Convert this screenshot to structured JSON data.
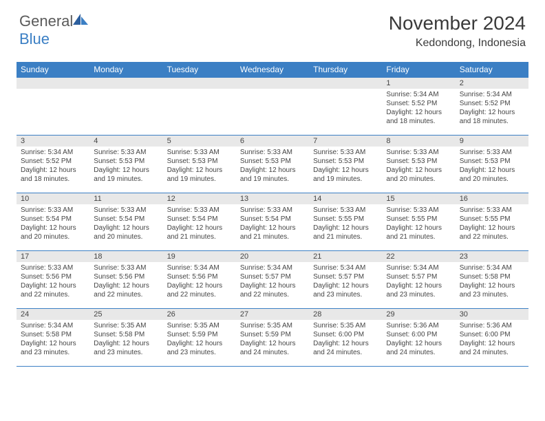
{
  "logo": {
    "text1": "General",
    "text2": "Blue"
  },
  "title": "November 2024",
  "location": "Kedondong, Indonesia",
  "header_bg": "#3b7fc4",
  "day_bg": "#e8e8e8",
  "border_color": "#3b7fc4",
  "weekdays": [
    "Sunday",
    "Monday",
    "Tuesday",
    "Wednesday",
    "Thursday",
    "Friday",
    "Saturday"
  ],
  "weeks": [
    [
      {
        "empty": true
      },
      {
        "empty": true
      },
      {
        "empty": true
      },
      {
        "empty": true
      },
      {
        "empty": true
      },
      {
        "day": "1",
        "sunrise": "Sunrise: 5:34 AM",
        "sunset": "Sunset: 5:52 PM",
        "daylight": "Daylight: 12 hours and 18 minutes."
      },
      {
        "day": "2",
        "sunrise": "Sunrise: 5:34 AM",
        "sunset": "Sunset: 5:52 PM",
        "daylight": "Daylight: 12 hours and 18 minutes."
      }
    ],
    [
      {
        "day": "3",
        "sunrise": "Sunrise: 5:34 AM",
        "sunset": "Sunset: 5:52 PM",
        "daylight": "Daylight: 12 hours and 18 minutes."
      },
      {
        "day": "4",
        "sunrise": "Sunrise: 5:33 AM",
        "sunset": "Sunset: 5:53 PM",
        "daylight": "Daylight: 12 hours and 19 minutes."
      },
      {
        "day": "5",
        "sunrise": "Sunrise: 5:33 AM",
        "sunset": "Sunset: 5:53 PM",
        "daylight": "Daylight: 12 hours and 19 minutes."
      },
      {
        "day": "6",
        "sunrise": "Sunrise: 5:33 AM",
        "sunset": "Sunset: 5:53 PM",
        "daylight": "Daylight: 12 hours and 19 minutes."
      },
      {
        "day": "7",
        "sunrise": "Sunrise: 5:33 AM",
        "sunset": "Sunset: 5:53 PM",
        "daylight": "Daylight: 12 hours and 19 minutes."
      },
      {
        "day": "8",
        "sunrise": "Sunrise: 5:33 AM",
        "sunset": "Sunset: 5:53 PM",
        "daylight": "Daylight: 12 hours and 20 minutes."
      },
      {
        "day": "9",
        "sunrise": "Sunrise: 5:33 AM",
        "sunset": "Sunset: 5:53 PM",
        "daylight": "Daylight: 12 hours and 20 minutes."
      }
    ],
    [
      {
        "day": "10",
        "sunrise": "Sunrise: 5:33 AM",
        "sunset": "Sunset: 5:54 PM",
        "daylight": "Daylight: 12 hours and 20 minutes."
      },
      {
        "day": "11",
        "sunrise": "Sunrise: 5:33 AM",
        "sunset": "Sunset: 5:54 PM",
        "daylight": "Daylight: 12 hours and 20 minutes."
      },
      {
        "day": "12",
        "sunrise": "Sunrise: 5:33 AM",
        "sunset": "Sunset: 5:54 PM",
        "daylight": "Daylight: 12 hours and 21 minutes."
      },
      {
        "day": "13",
        "sunrise": "Sunrise: 5:33 AM",
        "sunset": "Sunset: 5:54 PM",
        "daylight": "Daylight: 12 hours and 21 minutes."
      },
      {
        "day": "14",
        "sunrise": "Sunrise: 5:33 AM",
        "sunset": "Sunset: 5:55 PM",
        "daylight": "Daylight: 12 hours and 21 minutes."
      },
      {
        "day": "15",
        "sunrise": "Sunrise: 5:33 AM",
        "sunset": "Sunset: 5:55 PM",
        "daylight": "Daylight: 12 hours and 21 minutes."
      },
      {
        "day": "16",
        "sunrise": "Sunrise: 5:33 AM",
        "sunset": "Sunset: 5:55 PM",
        "daylight": "Daylight: 12 hours and 22 minutes."
      }
    ],
    [
      {
        "day": "17",
        "sunrise": "Sunrise: 5:33 AM",
        "sunset": "Sunset: 5:56 PM",
        "daylight": "Daylight: 12 hours and 22 minutes."
      },
      {
        "day": "18",
        "sunrise": "Sunrise: 5:33 AM",
        "sunset": "Sunset: 5:56 PM",
        "daylight": "Daylight: 12 hours and 22 minutes."
      },
      {
        "day": "19",
        "sunrise": "Sunrise: 5:34 AM",
        "sunset": "Sunset: 5:56 PM",
        "daylight": "Daylight: 12 hours and 22 minutes."
      },
      {
        "day": "20",
        "sunrise": "Sunrise: 5:34 AM",
        "sunset": "Sunset: 5:57 PM",
        "daylight": "Daylight: 12 hours and 22 minutes."
      },
      {
        "day": "21",
        "sunrise": "Sunrise: 5:34 AM",
        "sunset": "Sunset: 5:57 PM",
        "daylight": "Daylight: 12 hours and 23 minutes."
      },
      {
        "day": "22",
        "sunrise": "Sunrise: 5:34 AM",
        "sunset": "Sunset: 5:57 PM",
        "daylight": "Daylight: 12 hours and 23 minutes."
      },
      {
        "day": "23",
        "sunrise": "Sunrise: 5:34 AM",
        "sunset": "Sunset: 5:58 PM",
        "daylight": "Daylight: 12 hours and 23 minutes."
      }
    ],
    [
      {
        "day": "24",
        "sunrise": "Sunrise: 5:34 AM",
        "sunset": "Sunset: 5:58 PM",
        "daylight": "Daylight: 12 hours and 23 minutes."
      },
      {
        "day": "25",
        "sunrise": "Sunrise: 5:35 AM",
        "sunset": "Sunset: 5:58 PM",
        "daylight": "Daylight: 12 hours and 23 minutes."
      },
      {
        "day": "26",
        "sunrise": "Sunrise: 5:35 AM",
        "sunset": "Sunset: 5:59 PM",
        "daylight": "Daylight: 12 hours and 23 minutes."
      },
      {
        "day": "27",
        "sunrise": "Sunrise: 5:35 AM",
        "sunset": "Sunset: 5:59 PM",
        "daylight": "Daylight: 12 hours and 24 minutes."
      },
      {
        "day": "28",
        "sunrise": "Sunrise: 5:35 AM",
        "sunset": "Sunset: 6:00 PM",
        "daylight": "Daylight: 12 hours and 24 minutes."
      },
      {
        "day": "29",
        "sunrise": "Sunrise: 5:36 AM",
        "sunset": "Sunset: 6:00 PM",
        "daylight": "Daylight: 12 hours and 24 minutes."
      },
      {
        "day": "30",
        "sunrise": "Sunrise: 5:36 AM",
        "sunset": "Sunset: 6:00 PM",
        "daylight": "Daylight: 12 hours and 24 minutes."
      }
    ]
  ]
}
